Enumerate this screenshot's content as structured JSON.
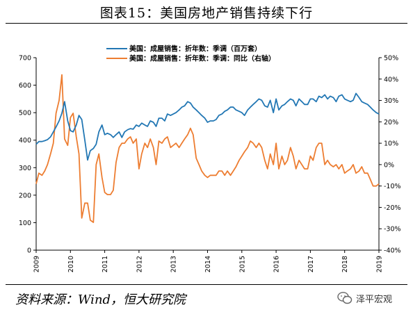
{
  "header": {
    "title": "图表15：美国房地产销售持续下行"
  },
  "footer": {
    "source": "资料来源：Wind，恒大研究院",
    "watermark": "泽平宏观"
  },
  "chart_data": {
    "type": "line",
    "title": "",
    "xlabel": "",
    "ylabel": "",
    "x_ticks": [
      "2009",
      "2010",
      "2011",
      "2012",
      "2013",
      "2014",
      "2015",
      "2016",
      "2017",
      "2018",
      "2019"
    ],
    "x_range": [
      2009,
      2019
    ],
    "y_left": {
      "range": [
        0,
        700
      ],
      "ticks": [
        "0",
        "100",
        "200",
        "300",
        "400",
        "500",
        "600",
        "700"
      ]
    },
    "y_right": {
      "range": [
        -40,
        50
      ],
      "ticks": [
        "-40%",
        "-30%",
        "-20%",
        "-10%",
        "0%",
        "10%",
        "20%",
        "30%",
        "40%",
        "50%"
      ]
    },
    "grid": false,
    "legend_position": "top-center",
    "series": [
      {
        "name": "美国：成屋销售：折年数：季调（百万套）",
        "axis": "left",
        "color": "#2277b4",
        "x": [
          2009.0,
          2009.08,
          2009.17,
          2009.25,
          2009.33,
          2009.42,
          2009.5,
          2009.58,
          2009.67,
          2009.75,
          2009.83,
          2009.92,
          2010.0,
          2010.08,
          2010.17,
          2010.25,
          2010.33,
          2010.42,
          2010.5,
          2010.58,
          2010.67,
          2010.75,
          2010.83,
          2010.92,
          2011.0,
          2011.08,
          2011.17,
          2011.25,
          2011.33,
          2011.42,
          2011.5,
          2011.58,
          2011.67,
          2011.75,
          2011.83,
          2011.92,
          2012.0,
          2012.08,
          2012.17,
          2012.25,
          2012.33,
          2012.42,
          2012.5,
          2012.58,
          2012.67,
          2012.75,
          2012.83,
          2012.92,
          2013.0,
          2013.08,
          2013.17,
          2013.25,
          2013.33,
          2013.42,
          2013.5,
          2013.58,
          2013.67,
          2013.75,
          2013.83,
          2013.92,
          2014.0,
          2014.08,
          2014.17,
          2014.25,
          2014.33,
          2014.42,
          2014.5,
          2014.58,
          2014.67,
          2014.75,
          2014.83,
          2014.92,
          2015.0,
          2015.08,
          2015.17,
          2015.25,
          2015.33,
          2015.42,
          2015.5,
          2015.58,
          2015.67,
          2015.75,
          2015.83,
          2015.92,
          2016.0,
          2016.08,
          2016.17,
          2016.25,
          2016.33,
          2016.42,
          2016.5,
          2016.58,
          2016.67,
          2016.75,
          2016.83,
          2016.92,
          2017.0,
          2017.08,
          2017.17,
          2017.25,
          2017.33,
          2017.42,
          2017.5,
          2017.58,
          2017.67,
          2017.75,
          2017.83,
          2017.92,
          2018.0,
          2018.08,
          2018.17,
          2018.25,
          2018.33,
          2018.42,
          2018.5,
          2018.58,
          2018.67,
          2018.75,
          2018.83,
          2018.92,
          2019.0
        ],
        "y": [
          385,
          395,
          395,
          398,
          402,
          412,
          430,
          448,
          470,
          498,
          540,
          470,
          435,
          430,
          455,
          490,
          475,
          400,
          328,
          362,
          370,
          385,
          430,
          455,
          420,
          425,
          420,
          410,
          420,
          430,
          410,
          430,
          438,
          442,
          440,
          455,
          450,
          462,
          455,
          450,
          470,
          465,
          450,
          480,
          480,
          470,
          495,
          490,
          495,
          500,
          510,
          520,
          525,
          540,
          535,
          520,
          510,
          500,
          490,
          480,
          465,
          470,
          470,
          475,
          490,
          495,
          505,
          510,
          520,
          520,
          510,
          505,
          500,
          490,
          510,
          520,
          530,
          540,
          550,
          545,
          525,
          520,
          545,
          500,
          550,
          510,
          525,
          530,
          540,
          550,
          545,
          525,
          550,
          540,
          530,
          530,
          550,
          550,
          540,
          560,
          555,
          565,
          550,
          560,
          555,
          540,
          560,
          565,
          550,
          545,
          540,
          545,
          570,
          555,
          540,
          535,
          530,
          520,
          510,
          500,
          495
        ]
      },
      {
        "name": "美国：成屋销售：折年数：季调：同比（右轴）",
        "axis": "right",
        "color": "#ed7d31",
        "x": [
          2009.0,
          2009.08,
          2009.17,
          2009.25,
          2009.33,
          2009.42,
          2009.5,
          2009.58,
          2009.67,
          2009.75,
          2009.83,
          2009.92,
          2010.0,
          2010.08,
          2010.17,
          2010.25,
          2010.33,
          2010.42,
          2010.5,
          2010.58,
          2010.67,
          2010.75,
          2010.83,
          2010.92,
          2011.0,
          2011.08,
          2011.17,
          2011.25,
          2011.33,
          2011.42,
          2011.5,
          2011.58,
          2011.67,
          2011.75,
          2011.83,
          2011.92,
          2012.0,
          2012.08,
          2012.17,
          2012.25,
          2012.33,
          2012.42,
          2012.5,
          2012.58,
          2012.67,
          2012.75,
          2012.83,
          2012.92,
          2013.0,
          2013.08,
          2013.17,
          2013.25,
          2013.33,
          2013.42,
          2013.5,
          2013.58,
          2013.67,
          2013.75,
          2013.83,
          2013.92,
          2014.0,
          2014.08,
          2014.17,
          2014.25,
          2014.33,
          2014.42,
          2014.5,
          2014.58,
          2014.67,
          2014.75,
          2014.83,
          2014.92,
          2015.0,
          2015.08,
          2015.17,
          2015.25,
          2015.33,
          2015.42,
          2015.5,
          2015.58,
          2015.67,
          2015.75,
          2015.83,
          2015.92,
          2016.0,
          2016.08,
          2016.17,
          2016.25,
          2016.33,
          2016.42,
          2016.5,
          2016.58,
          2016.67,
          2016.75,
          2016.83,
          2016.92,
          2017.0,
          2017.08,
          2017.17,
          2017.25,
          2017.33,
          2017.42,
          2017.5,
          2017.58,
          2017.67,
          2017.75,
          2017.83,
          2017.92,
          2018.0,
          2018.08,
          2018.17,
          2018.25,
          2018.33,
          2018.42,
          2018.5,
          2018.58,
          2018.67,
          2018.75,
          2018.83,
          2018.92,
          2019.0
        ],
        "y": [
          -9,
          -4,
          -5,
          -3,
          0,
          5,
          10,
          24,
          30,
          42,
          12,
          9,
          22,
          24,
          13,
          5,
          -25,
          -18,
          -18,
          -26,
          -27,
          0,
          5,
          -6,
          -13,
          -14,
          -14,
          -12,
          1,
          8,
          10,
          10,
          12,
          13,
          10,
          12,
          -2,
          5,
          10,
          8,
          12,
          8,
          0,
          11,
          10,
          12,
          13,
          8,
          9,
          10,
          8,
          10,
          12,
          14,
          17,
          14,
          3,
          0,
          -3,
          -5,
          -6,
          -5,
          -5,
          -5,
          -3,
          -3,
          -5,
          -3,
          -5,
          -3,
          -1,
          2,
          4,
          6,
          8,
          11,
          10,
          8,
          10,
          8,
          2,
          -2,
          5,
          0,
          10,
          -2,
          4,
          0,
          2,
          8,
          4,
          -2,
          2,
          0,
          -2,
          -2,
          4,
          2,
          8,
          10,
          10,
          0,
          2,
          0,
          -1,
          0,
          -2,
          0,
          -4,
          -3,
          -2,
          0,
          -4,
          -3,
          -1,
          -4,
          -4,
          -7,
          -10,
          -10,
          -9
        ]
      }
    ]
  }
}
